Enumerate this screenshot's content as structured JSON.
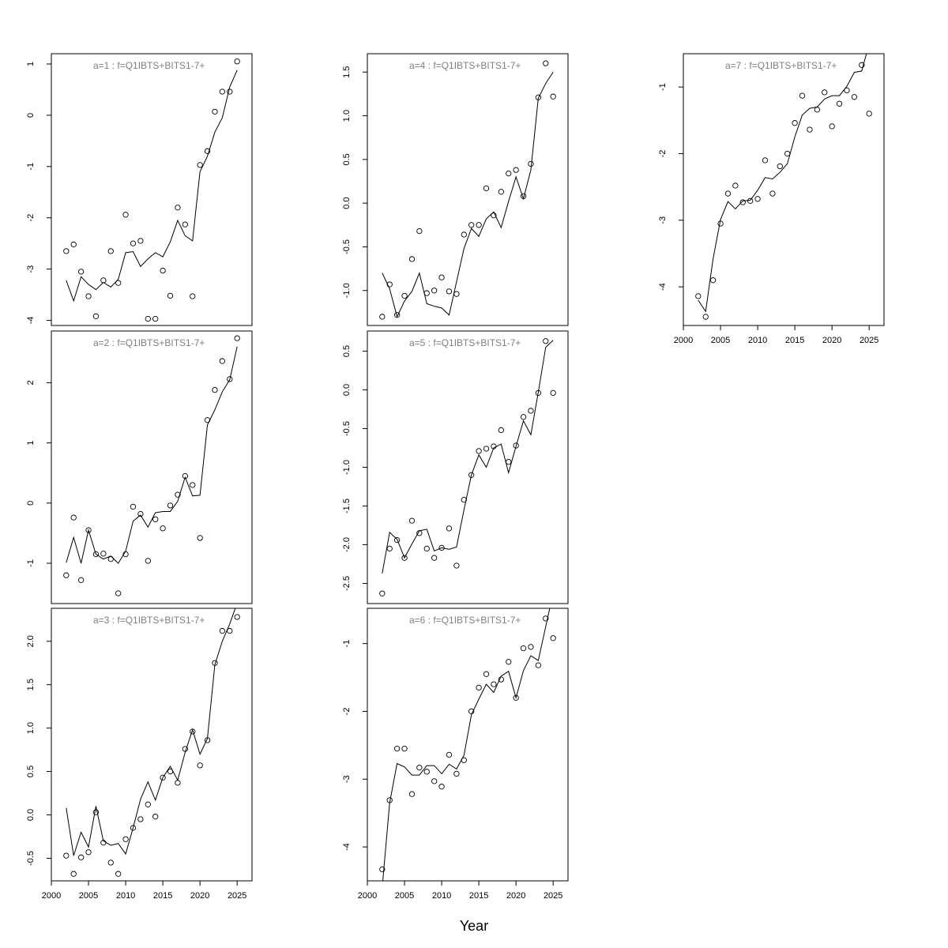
{
  "figure": {
    "xlabel": "Year"
  },
  "chart_data": [
    {
      "type": "scatter",
      "title": "a=1  :  f=Q1IBTS+BITS1-7+",
      "xlim": [
        2000,
        2027
      ],
      "ylim": [
        -4.1,
        1.2
      ],
      "yticks": [
        -4,
        -3,
        -2,
        -1,
        0,
        1
      ],
      "yticklabels": [
        "-4",
        "-3",
        "-2",
        "-1",
        "0",
        "1"
      ],
      "xticks": [
        2000,
        2005,
        2010,
        2015,
        2020,
        2025
      ],
      "xticklabels": [
        "2000",
        "2005",
        "2010",
        "2015",
        "2020",
        "2025"
      ],
      "show_xticklabels": false,
      "series": [
        {
          "style": "points",
          "x": [
            2002,
            2003,
            2004,
            2005,
            2006,
            2007,
            2008,
            2009,
            2010,
            2011,
            2012,
            2013,
            2014,
            2015,
            2016,
            2017,
            2018,
            2019,
            2020,
            2021,
            2022,
            2023,
            2024,
            2025
          ],
          "y": [
            -2.65,
            -2.52,
            -3.05,
            -3.53,
            -3.92,
            -3.22,
            -2.65,
            -3.27,
            -1.94,
            -2.5,
            -2.45,
            -3.97,
            -3.97,
            -3.03,
            -3.52,
            -1.8,
            -2.13,
            -3.53,
            -0.97,
            -0.7,
            0.07,
            0.46,
            0.46,
            1.05
          ]
        },
        {
          "style": "line",
          "x": [
            2002,
            2003,
            2004,
            2005,
            2006,
            2007,
            2008,
            2009,
            2010,
            2011,
            2012,
            2013,
            2014,
            2015,
            2016,
            2017,
            2018,
            2019,
            2020,
            2021,
            2022,
            2023,
            2024,
            2025
          ],
          "y": [
            -3.22,
            -3.62,
            -3.15,
            -3.3,
            -3.4,
            -3.26,
            -3.35,
            -3.2,
            -2.68,
            -2.66,
            -2.95,
            -2.8,
            -2.68,
            -2.76,
            -2.47,
            -2.05,
            -2.35,
            -2.45,
            -1.1,
            -0.8,
            -0.33,
            -0.05,
            0.55,
            0.88
          ]
        }
      ]
    },
    {
      "type": "scatter",
      "title": "a=2  :  f=Q1IBTS+BITS1-7+",
      "xlim": [
        2000,
        2027
      ],
      "ylim": [
        -1.67,
        2.86
      ],
      "yticks": [
        -1,
        0,
        1,
        2
      ],
      "yticklabels": [
        "-1",
        "0",
        "1",
        "2"
      ],
      "xticks": [
        2000,
        2005,
        2010,
        2015,
        2020,
        2025
      ],
      "xticklabels": [
        "2000",
        "2005",
        "2010",
        "2015",
        "2020",
        "2025"
      ],
      "show_xticklabels": false,
      "series": [
        {
          "style": "points",
          "x": [
            2002,
            2003,
            2004,
            2005,
            2006,
            2007,
            2008,
            2009,
            2010,
            2011,
            2012,
            2013,
            2014,
            2015,
            2016,
            2017,
            2018,
            2019,
            2020,
            2021,
            2022,
            2023,
            2024,
            2025
          ],
          "y": [
            -1.2,
            -0.24,
            -1.28,
            -0.45,
            -0.85,
            -0.84,
            -0.93,
            -1.5,
            -0.85,
            -0.06,
            -0.18,
            -0.96,
            -0.27,
            -0.42,
            -0.04,
            0.14,
            0.45,
            0.3,
            -0.58,
            1.38,
            1.88,
            2.36,
            2.06,
            2.74
          ]
        },
        {
          "style": "line",
          "x": [
            2002,
            2003,
            2004,
            2005,
            2006,
            2007,
            2008,
            2009,
            2010,
            2011,
            2012,
            2013,
            2014,
            2015,
            2016,
            2017,
            2018,
            2019,
            2020,
            2021,
            2022,
            2023,
            2024,
            2025
          ],
          "y": [
            -0.99,
            -0.57,
            -1.0,
            -0.45,
            -0.85,
            -0.93,
            -0.88,
            -1.0,
            -0.8,
            -0.3,
            -0.2,
            -0.4,
            -0.16,
            -0.14,
            -0.14,
            0.03,
            0.43,
            0.12,
            0.13,
            1.3,
            1.55,
            1.85,
            2.05,
            2.6
          ]
        }
      ]
    },
    {
      "type": "scatter",
      "title": "a=3  :  f=Q1IBTS+BITS1-7+",
      "xlim": [
        2000,
        2027
      ],
      "ylim": [
        -0.76,
        2.38
      ],
      "yticks": [
        -0.5,
        0.0,
        0.5,
        1.0,
        1.5,
        2.0
      ],
      "yticklabels": [
        "-0.5",
        "0.0",
        "0.5",
        "1.0",
        "1.5",
        "2.0"
      ],
      "xticks": [
        2000,
        2005,
        2010,
        2015,
        2020,
        2025
      ],
      "xticklabels": [
        "2000",
        "2005",
        "2010",
        "2015",
        "2020",
        "2025"
      ],
      "show_xticklabels": true,
      "series": [
        {
          "style": "points",
          "x": [
            2002,
            2003,
            2004,
            2005,
            2006,
            2007,
            2008,
            2009,
            2010,
            2011,
            2012,
            2013,
            2014,
            2015,
            2016,
            2017,
            2018,
            2019,
            2020,
            2021,
            2022,
            2023,
            2024,
            2025
          ],
          "y": [
            -0.47,
            -0.68,
            -0.49,
            -0.43,
            0.03,
            -0.32,
            -0.55,
            -0.68,
            -0.28,
            -0.15,
            -0.05,
            0.12,
            -0.02,
            0.43,
            0.5,
            0.37,
            0.76,
            0.96,
            0.57,
            0.86,
            1.75,
            2.12,
            2.12,
            2.28
          ]
        },
        {
          "style": "line",
          "x": [
            2002,
            2003,
            2004,
            2005,
            2006,
            2007,
            2008,
            2009,
            2010,
            2011,
            2012,
            2013,
            2014,
            2015,
            2016,
            2017,
            2018,
            2019,
            2020,
            2021,
            2022,
            2023,
            2024,
            2025
          ],
          "y": [
            0.08,
            -0.47,
            -0.2,
            -0.37,
            0.1,
            -0.3,
            -0.35,
            -0.33,
            -0.45,
            -0.15,
            0.18,
            0.38,
            0.17,
            0.43,
            0.56,
            0.4,
            0.72,
            0.98,
            0.7,
            0.88,
            1.73,
            2.0,
            2.2,
            2.44
          ]
        }
      ]
    },
    {
      "type": "scatter",
      "title": "a=4  :  f=Q1IBTS+BITS1-7+",
      "xlim": [
        2000,
        2027
      ],
      "ylim": [
        -1.4,
        1.71
      ],
      "yticks": [
        -1.0,
        -0.5,
        0.0,
        0.5,
        1.0,
        1.5
      ],
      "yticklabels": [
        "-1.0",
        "-0.5",
        "0.0",
        "0.5",
        "1.0",
        "1.5"
      ],
      "xticks": [
        2000,
        2005,
        2010,
        2015,
        2020,
        2025
      ],
      "xticklabels": [
        "2000",
        "2005",
        "2010",
        "2015",
        "2020",
        "2025"
      ],
      "show_xticklabels": false,
      "series": [
        {
          "style": "points",
          "x": [
            2002,
            2003,
            2004,
            2005,
            2006,
            2007,
            2008,
            2009,
            2010,
            2011,
            2012,
            2013,
            2014,
            2015,
            2016,
            2017,
            2018,
            2019,
            2020,
            2021,
            2022,
            2023,
            2024,
            2025
          ],
          "y": [
            -1.3,
            -0.93,
            -1.28,
            -1.06,
            -0.64,
            -0.32,
            -1.03,
            -1.0,
            -0.85,
            -1.01,
            -1.04,
            -0.36,
            -0.25,
            -0.25,
            0.17,
            -0.14,
            0.13,
            0.34,
            0.38,
            0.08,
            0.45,
            1.21,
            1.6,
            1.22
          ]
        },
        {
          "style": "line",
          "x": [
            2002,
            2003,
            2004,
            2005,
            2006,
            2007,
            2008,
            2009,
            2010,
            2011,
            2012,
            2013,
            2014,
            2015,
            2016,
            2017,
            2018,
            2019,
            2020,
            2021,
            2022,
            2023,
            2024,
            2025
          ],
          "y": [
            -0.8,
            -0.98,
            -1.3,
            -1.12,
            -1.01,
            -0.8,
            -1.15,
            -1.18,
            -1.2,
            -1.28,
            -0.9,
            -0.52,
            -0.29,
            -0.38,
            -0.18,
            -0.1,
            -0.28,
            0.02,
            0.3,
            0.05,
            0.38,
            1.2,
            1.37,
            1.5
          ]
        }
      ]
    },
    {
      "type": "scatter",
      "title": "a=5  :  f=Q1IBTS+BITS1-7+",
      "xlim": [
        2000,
        2027
      ],
      "ylim": [
        -2.76,
        0.76
      ],
      "yticks": [
        -2.5,
        -2.0,
        -1.5,
        -1.0,
        -0.5,
        0.0,
        0.5
      ],
      "yticklabels": [
        "-2.5",
        "-2.0",
        "-1.5",
        "-1.0",
        "-0.5",
        "0.0",
        "0.5"
      ],
      "xticks": [
        2000,
        2005,
        2010,
        2015,
        2020,
        2025
      ],
      "xticklabels": [
        "2000",
        "2005",
        "2010",
        "2015",
        "2020",
        "2025"
      ],
      "show_xticklabels": false,
      "series": [
        {
          "style": "points",
          "x": [
            2002,
            2003,
            2004,
            2005,
            2006,
            2007,
            2008,
            2009,
            2010,
            2011,
            2012,
            2013,
            2014,
            2015,
            2016,
            2017,
            2018,
            2019,
            2020,
            2021,
            2022,
            2023,
            2024,
            2025
          ],
          "y": [
            -2.63,
            -2.05,
            -1.94,
            -2.17,
            -1.69,
            -1.85,
            -2.05,
            -2.17,
            -2.04,
            -1.79,
            -2.27,
            -1.42,
            -1.1,
            -0.79,
            -0.76,
            -0.73,
            -0.52,
            -0.93,
            -0.72,
            -0.35,
            -0.27,
            -0.04,
            0.63,
            -0.04
          ]
        },
        {
          "style": "line",
          "x": [
            2002,
            2003,
            2004,
            2005,
            2006,
            2007,
            2008,
            2009,
            2010,
            2011,
            2012,
            2013,
            2014,
            2015,
            2016,
            2017,
            2018,
            2019,
            2020,
            2021,
            2022,
            2023,
            2024,
            2025
          ],
          "y": [
            -2.37,
            -1.84,
            -1.93,
            -2.17,
            -1.99,
            -1.82,
            -1.8,
            -2.08,
            -2.04,
            -2.06,
            -2.03,
            -1.55,
            -1.1,
            -0.84,
            -1.0,
            -0.75,
            -0.7,
            -1.07,
            -0.73,
            -0.4,
            -0.58,
            -0.03,
            0.55,
            0.64
          ]
        }
      ]
    },
    {
      "type": "scatter",
      "title": "a=6  :  f=Q1IBTS+BITS1-7+",
      "xlim": [
        2000,
        2027
      ],
      "ylim": [
        -4.5,
        -0.48
      ],
      "yticks": [
        -4,
        -3,
        -2,
        -1
      ],
      "yticklabels": [
        "-4",
        "-3",
        "-2",
        "-1"
      ],
      "xticks": [
        2000,
        2005,
        2010,
        2015,
        2020,
        2025
      ],
      "xticklabels": [
        "2000",
        "2005",
        "2010",
        "2015",
        "2020",
        "2025"
      ],
      "show_xticklabels": true,
      "series": [
        {
          "style": "points",
          "x": [
            2002,
            2003,
            2004,
            2005,
            2006,
            2007,
            2008,
            2009,
            2010,
            2011,
            2012,
            2013,
            2014,
            2015,
            2016,
            2017,
            2018,
            2019,
            2020,
            2021,
            2022,
            2023,
            2024,
            2025
          ],
          "y": [
            -4.33,
            -3.31,
            -2.55,
            -2.55,
            -3.22,
            -2.83,
            -2.89,
            -3.03,
            -3.11,
            -2.64,
            -2.92,
            -2.72,
            -2.0,
            -1.65,
            -1.45,
            -1.6,
            -1.53,
            -1.27,
            -1.8,
            -1.07,
            -1.05,
            -1.32,
            -0.63,
            -0.92
          ]
        },
        {
          "style": "line",
          "x": [
            2002,
            2003,
            2004,
            2005,
            2006,
            2007,
            2008,
            2009,
            2010,
            2011,
            2012,
            2013,
            2014,
            2015,
            2016,
            2017,
            2018,
            2019,
            2020,
            2021,
            2022,
            2023,
            2024,
            2025
          ],
          "y": [
            -4.6,
            -3.35,
            -2.77,
            -2.82,
            -2.94,
            -2.94,
            -2.8,
            -2.8,
            -2.92,
            -2.78,
            -2.85,
            -2.65,
            -2.05,
            -1.82,
            -1.6,
            -1.72,
            -1.48,
            -1.41,
            -1.8,
            -1.4,
            -1.18,
            -1.25,
            -0.75,
            -0.25
          ]
        }
      ]
    },
    {
      "type": "scatter",
      "title": "a=7  :  f=Q1IBTS+BITS1-7+",
      "xlim": [
        2000,
        2027
      ],
      "ylim": [
        -4.58,
        -0.5
      ],
      "yticks": [
        -4,
        -3,
        -2,
        -1
      ],
      "yticklabels": [
        "-4",
        "-3",
        "-2",
        "-1"
      ],
      "xticks": [
        2000,
        2005,
        2010,
        2015,
        2020,
        2025
      ],
      "xticklabels": [
        "2000",
        "2005",
        "2010",
        "2015",
        "2020",
        "2025"
      ],
      "show_xticklabels": true,
      "series": [
        {
          "style": "points",
          "x": [
            2002,
            2003,
            2004,
            2005,
            2006,
            2007,
            2008,
            2009,
            2010,
            2011,
            2012,
            2013,
            2014,
            2015,
            2016,
            2017,
            2018,
            2019,
            2020,
            2021,
            2022,
            2023,
            2024,
            2025
          ],
          "y": [
            -4.14,
            -4.45,
            -3.9,
            -3.05,
            -2.6,
            -2.48,
            -2.73,
            -2.71,
            -2.68,
            -2.1,
            -2.6,
            -2.19,
            -2.0,
            -1.54,
            -1.13,
            -1.64,
            -1.34,
            -1.08,
            -1.59,
            -1.25,
            -1.05,
            -1.15,
            -0.67,
            -1.4
          ]
        },
        {
          "style": "line",
          "x": [
            2002,
            2003,
            2004,
            2005,
            2006,
            2007,
            2008,
            2009,
            2010,
            2011,
            2012,
            2013,
            2014,
            2015,
            2016,
            2017,
            2018,
            2019,
            2020,
            2021,
            2022,
            2023,
            2024,
            2025
          ],
          "y": [
            -4.2,
            -4.37,
            -3.58,
            -2.99,
            -2.72,
            -2.83,
            -2.71,
            -2.7,
            -2.55,
            -2.36,
            -2.38,
            -2.28,
            -2.15,
            -1.75,
            -1.42,
            -1.32,
            -1.3,
            -1.18,
            -1.13,
            -1.13,
            -0.99,
            -0.78,
            -0.76,
            -0.35
          ]
        }
      ]
    }
  ]
}
